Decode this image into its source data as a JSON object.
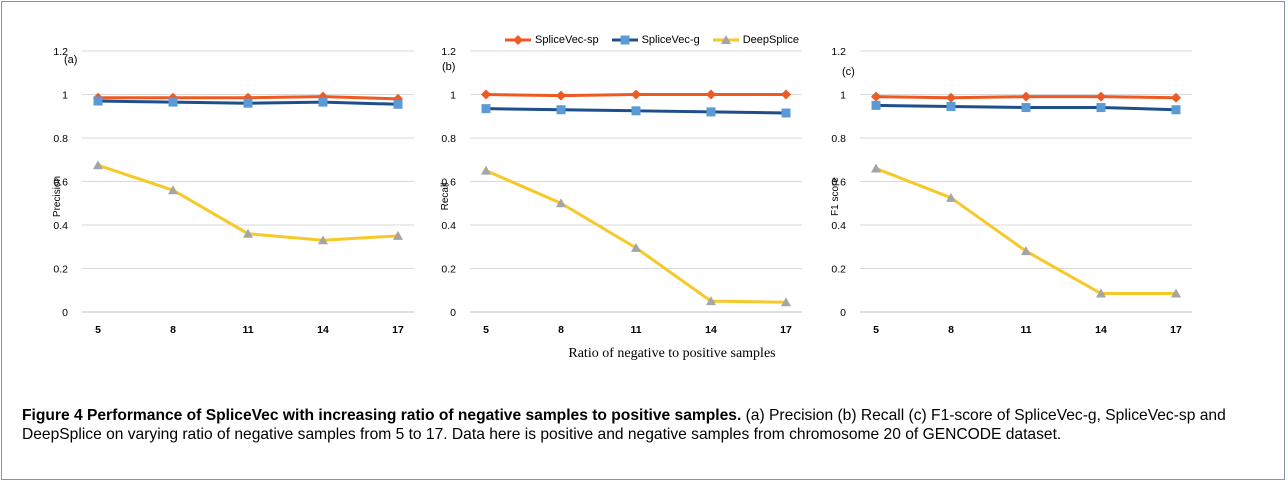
{
  "chart_data": [
    {
      "type": "line",
      "panel_label": "(a)",
      "ylabel": "Precision",
      "categories": [
        5,
        8,
        11,
        14,
        17
      ],
      "ylim": [
        0,
        1.2
      ],
      "yticks": [
        0,
        0.2,
        0.4,
        0.6,
        0.8,
        1,
        1.2
      ],
      "grid": true,
      "series": [
        {
          "name": "SpliceVec-sp",
          "values": [
            0.985,
            0.985,
            0.985,
            0.99,
            0.98
          ]
        },
        {
          "name": "SpliceVec-g",
          "values": [
            0.97,
            0.965,
            0.96,
            0.965,
            0.955
          ]
        },
        {
          "name": "DeepSplice",
          "values": [
            0.675,
            0.56,
            0.36,
            0.33,
            0.35
          ]
        }
      ]
    },
    {
      "type": "line",
      "panel_label": "(b)",
      "ylabel": "Recall",
      "xlabel": "Ratio of negative to positive samples",
      "categories": [
        5,
        8,
        11,
        14,
        17
      ],
      "ylim": [
        0,
        1.2
      ],
      "yticks": [
        0,
        0.2,
        0.4,
        0.6,
        0.8,
        1,
        1.2
      ],
      "grid": true,
      "series": [
        {
          "name": "SpliceVec-sp",
          "values": [
            1.0,
            0.995,
            1.0,
            1.0,
            1.0
          ]
        },
        {
          "name": "SpliceVec-g",
          "values": [
            0.935,
            0.93,
            0.925,
            0.92,
            0.915
          ]
        },
        {
          "name": "DeepSplice",
          "values": [
            0.65,
            0.5,
            0.295,
            0.05,
            0.045
          ]
        }
      ]
    },
    {
      "type": "line",
      "panel_label": "(c)",
      "ylabel": "F1 score",
      "categories": [
        5,
        8,
        11,
        14,
        17
      ],
      "ylim": [
        0,
        1.2
      ],
      "yticks": [
        0,
        0.2,
        0.4,
        0.6,
        0.8,
        1,
        1.2
      ],
      "grid": true,
      "series": [
        {
          "name": "SpliceVec-sp",
          "values": [
            0.99,
            0.985,
            0.99,
            0.99,
            0.985
          ]
        },
        {
          "name": "SpliceVec-g",
          "values": [
            0.95,
            0.945,
            0.94,
            0.94,
            0.93
          ]
        },
        {
          "name": "DeepSplice",
          "values": [
            0.66,
            0.525,
            0.28,
            0.085,
            0.085
          ]
        }
      ]
    }
  ],
  "legend": {
    "placement": "top-center",
    "entries": [
      {
        "label": "SpliceVec-sp",
        "color": "#ed5a24",
        "marker": "diamond"
      },
      {
        "label": "SpliceVec-g",
        "color": "#1f4e8c",
        "marker": "square"
      },
      {
        "label": "DeepSplice",
        "color": "#f6c928",
        "marker": "triangle"
      }
    ]
  },
  "series_styles": [
    {
      "line": "#ed5a24",
      "marker": "#ed5a24",
      "shape": "diamond"
    },
    {
      "line": "#1f4e8c",
      "marker": "#5b9bd5",
      "shape": "square"
    },
    {
      "line": "#f6c928",
      "marker": "#a5a5a5",
      "shape": "triangle"
    }
  ],
  "x_axis_title": "Ratio of negative to positive samples",
  "caption": {
    "bold": "Figure 4 Performance of SpliceVec with increasing ratio of negative samples to positive samples.",
    "text": " (a) Precision (b) Recall (c) F1-score of SpliceVec-g, SpliceVec-sp and DeepSplice on varying ratio of negative samples from 5 to 17. Data here is positive and negative samples from chromosome 20 of GENCODE dataset."
  }
}
